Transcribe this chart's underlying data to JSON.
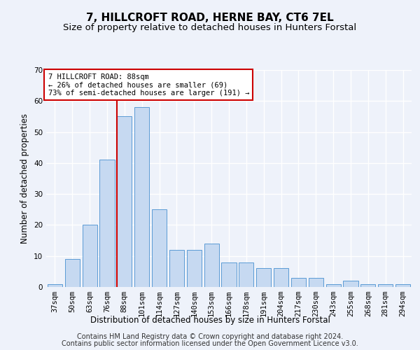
{
  "title": "7, HILLCROFT ROAD, HERNE BAY, CT6 7EL",
  "subtitle": "Size of property relative to detached houses in Hunters Forstal",
  "xlabel": "Distribution of detached houses by size in Hunters Forstal",
  "ylabel": "Number of detached properties",
  "categories": [
    "37sqm",
    "50sqm",
    "63sqm",
    "76sqm",
    "88sqm",
    "101sqm",
    "114sqm",
    "127sqm",
    "140sqm",
    "153sqm",
    "166sqm",
    "178sqm",
    "191sqm",
    "204sqm",
    "217sqm",
    "230sqm",
    "243sqm",
    "255sqm",
    "268sqm",
    "281sqm",
    "294sqm"
  ],
  "values": [
    1,
    9,
    20,
    41,
    55,
    58,
    25,
    12,
    12,
    14,
    8,
    8,
    6,
    6,
    3,
    3,
    1,
    2,
    1,
    1,
    1
  ],
  "bar_color": "#c6d9f1",
  "bar_edge_color": "#5b9bd5",
  "highlight_index": 4,
  "highlight_line_color": "#cc0000",
  "ylim": [
    0,
    70
  ],
  "yticks": [
    0,
    10,
    20,
    30,
    40,
    50,
    60,
    70
  ],
  "annotation_box_color": "#ffffff",
  "annotation_box_edge": "#cc0000",
  "annotation_text": "7 HILLCROFT ROAD: 88sqm\n← 26% of detached houses are smaller (69)\n73% of semi-detached houses are larger (191) →",
  "footer_line1": "Contains HM Land Registry data © Crown copyright and database right 2024.",
  "footer_line2": "Contains public sector information licensed under the Open Government Licence v3.0.",
  "background_color": "#eef2fa",
  "grid_color": "#ffffff",
  "title_fontsize": 11,
  "subtitle_fontsize": 9.5,
  "label_fontsize": 8.5,
  "tick_fontsize": 7.5,
  "annotation_fontsize": 7.5,
  "footer_fontsize": 7
}
